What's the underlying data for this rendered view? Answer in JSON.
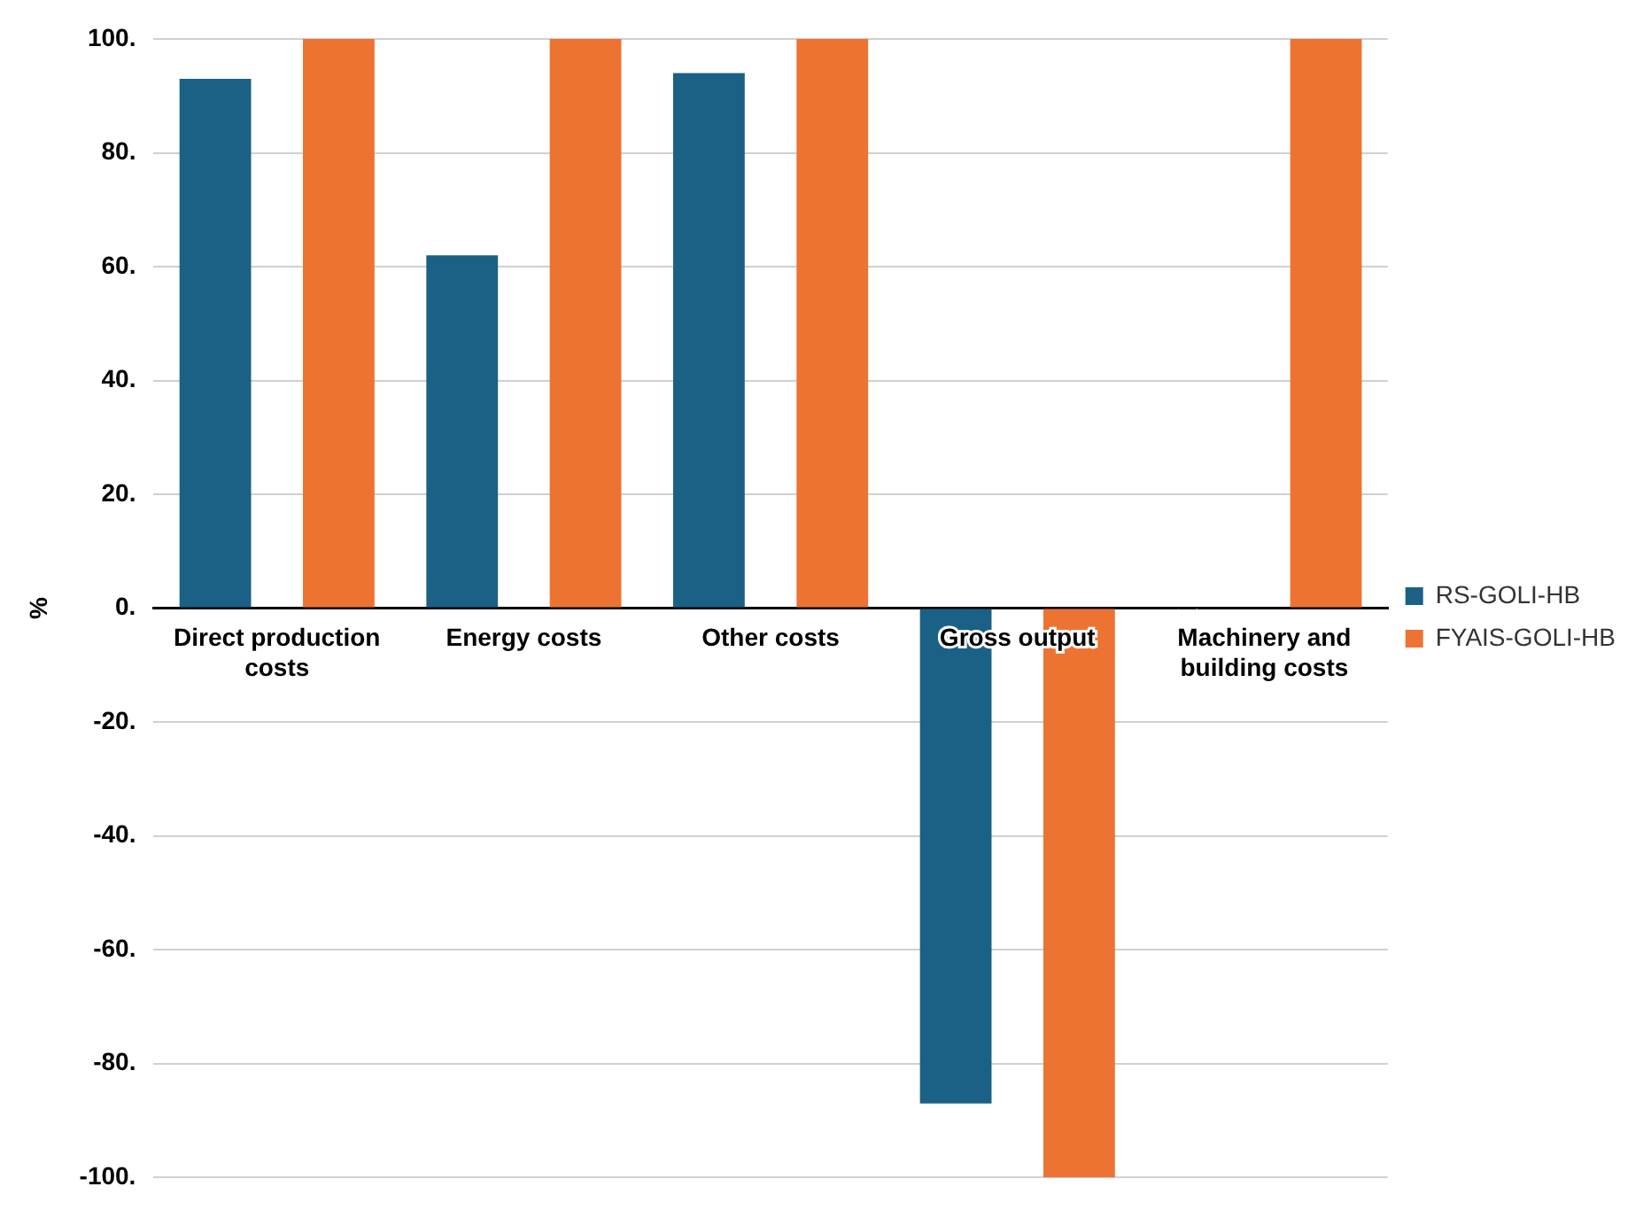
{
  "chart_data": {
    "type": "bar",
    "ylabel": "%",
    "categories": [
      "Direct production costs",
      "Energy costs",
      "Other costs",
      "Gross output",
      "Machinery and building costs"
    ],
    "series": [
      {
        "name": "RS-GOLI-HB",
        "color": "#1a6185",
        "values": [
          93,
          62,
          94,
          -87,
          null
        ]
      },
      {
        "name": "FYAIS-GOLI-HB",
        "color": "#ed7333",
        "values": [
          100,
          100,
          100,
          -100,
          100
        ]
      }
    ],
    "ylim": [
      -100,
      100
    ],
    "yticks": [
      {
        "value": -100,
        "label": "-100."
      },
      {
        "value": -80,
        "label": "-80."
      },
      {
        "value": -60,
        "label": "-60."
      },
      {
        "value": -40,
        "label": "-40."
      },
      {
        "value": -20,
        "label": "-20."
      },
      {
        "value": 0,
        "label": "0."
      },
      {
        "value": 20,
        "label": "20."
      },
      {
        "value": 40,
        "label": "40."
      },
      {
        "value": 60,
        "label": "60."
      },
      {
        "value": 80,
        "label": "80."
      },
      {
        "value": 100,
        "label": "100."
      }
    ],
    "grid": "y",
    "legend": "right"
  }
}
